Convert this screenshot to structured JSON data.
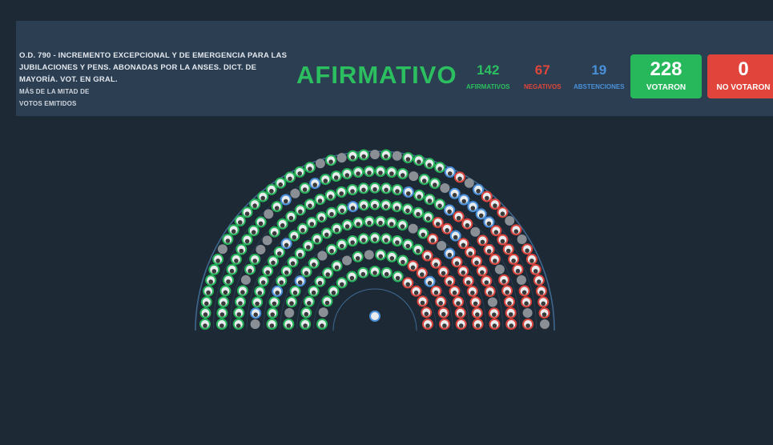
{
  "header": {
    "title": "O.D. 790 - INCREMENTO EXCEPCIONAL Y DE EMERGENCIA PARA LAS JUBILACIONES Y PENS. ABONADAS POR LA ANSES. DICT. DE MAYORÍA. VOT. EN GRAL.",
    "majority_line1": "MÁS DE LA MITAD DE",
    "majority_line2": "VOTOS EMITIDOS",
    "result": "AFIRMATIVO",
    "afirmativos": {
      "value": "142",
      "label": "AFIRMATIVOS"
    },
    "negativos": {
      "value": "67",
      "label": "NEGATIVOS"
    },
    "abstenciones": {
      "value": "19",
      "label": "ABSTENCIONES"
    },
    "votaron": {
      "value": "228",
      "label": "VOTARON"
    },
    "no_votaron": {
      "value": "0",
      "label": "NO VOTARON"
    }
  },
  "hemicycle": {
    "counts": {
      "afirmativo": 142,
      "negativo": 67,
      "abstencion": 19,
      "ausente": 29
    },
    "colors": {
      "afirmativo": "#27b35a",
      "negativo": "#d9453c",
      "abstencion": "#4a8fd9",
      "ausente": "#8a8f95",
      "presidente": "#4a8fd9"
    }
  }
}
